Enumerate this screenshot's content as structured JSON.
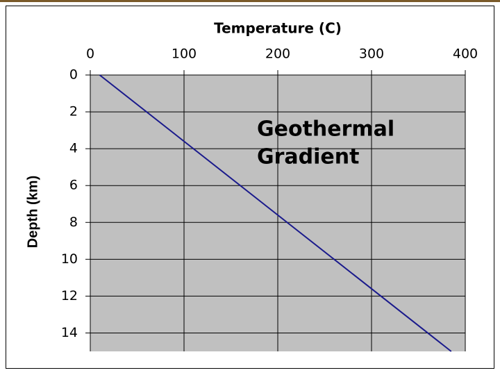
{
  "chart_data": {
    "type": "line",
    "x_label": "Temperature (C)",
    "y_label": "Depth (km)",
    "annotation": [
      "Geothermal",
      "Gradient"
    ],
    "x": [
      10,
      385
    ],
    "series": [
      {
        "name": "Geothermal gradient",
        "color": "#1a1a8c",
        "values": [
          0,
          15
        ]
      }
    ],
    "xlim": [
      0,
      400
    ],
    "xticks": [
      0,
      100,
      200,
      300,
      400
    ],
    "ylim": [
      0,
      15
    ],
    "yticks": [
      0,
      2,
      4,
      6,
      8,
      10,
      12,
      14
    ],
    "y_inverted": true,
    "x_axis_position": "top",
    "grid": true,
    "plot_background": "#c0c0c0"
  }
}
